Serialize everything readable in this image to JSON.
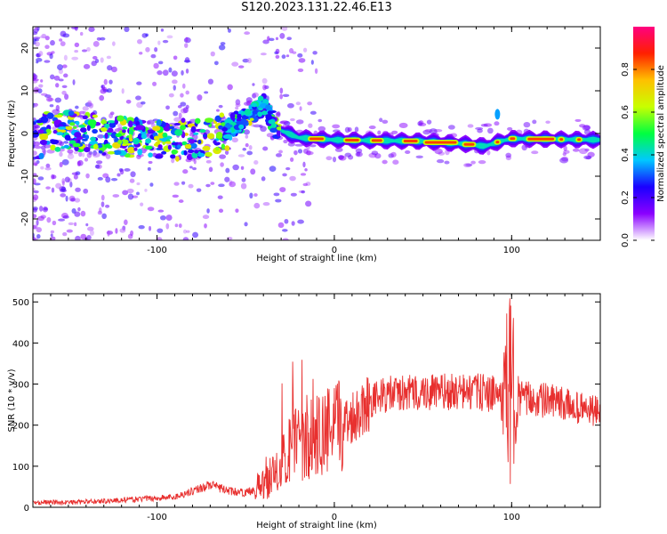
{
  "title": "S120.2023.131.22.46.E13",
  "chart_data": [
    {
      "type": "heatmap",
      "xlabel": "Height of straight line (km)",
      "ylabel": "Frequency (Hz)",
      "xlim": [
        -170,
        150
      ],
      "ylim": [
        -25,
        25
      ],
      "x_ticks": [
        -100,
        0,
        100
      ],
      "y_ticks": [
        -20,
        -10,
        0,
        10,
        20
      ],
      "colorbar": {
        "label": "Normalized spectral amplitude",
        "range": [
          0.0,
          1.0
        ],
        "ticks": [
          0.0,
          0.2,
          0.4,
          0.6,
          0.8
        ],
        "colormap": [
          "#ffffff",
          "#8a00ff",
          "#1a00ff",
          "#00c8ff",
          "#00ff40",
          "#c8ff00",
          "#ffc000",
          "#ff2000",
          "#ff0080"
        ]
      },
      "ridge": [
        {
          "x": -165,
          "f": 1.0
        },
        {
          "x": -140,
          "f": 0.0
        },
        {
          "x": -110,
          "f": -1.0
        },
        {
          "x": -90,
          "f": -1.5
        },
        {
          "x": -70,
          "f": -1.0
        },
        {
          "x": -60,
          "f": 1.0
        },
        {
          "x": -50,
          "f": 3.5
        },
        {
          "x": -40,
          "f": 7.0
        },
        {
          "x": -32,
          "f": 1.0
        },
        {
          "x": -20,
          "f": -1.0
        },
        {
          "x": 0,
          "f": -1.5
        },
        {
          "x": 50,
          "f": -1.8
        },
        {
          "x": 75,
          "f": -2.5
        },
        {
          "x": 85,
          "f": -3.0
        },
        {
          "x": 92,
          "f": -2.0
        },
        {
          "x": 100,
          "f": -1.2
        },
        {
          "x": 150,
          "f": -1.5
        }
      ]
    },
    {
      "type": "line",
      "xlabel": "Height of straight line (km)",
      "ylabel": "SNR (10 * v/v)",
      "xlim": [
        -170,
        150
      ],
      "ylim": [
        0,
        520
      ],
      "x_ticks": [
        -100,
        0,
        100
      ],
      "y_ticks": [
        0,
        100,
        200,
        300,
        400,
        500
      ],
      "series": [
        {
          "color": "#e8302f",
          "x": [
            -170,
            -150,
            -130,
            -110,
            -90,
            -80,
            -70,
            -60,
            -50,
            -40,
            -30,
            -20,
            -10,
            0,
            10,
            20,
            30,
            50,
            70,
            85,
            95,
            100,
            105,
            120,
            150
          ],
          "values": [
            12,
            12,
            15,
            20,
            25,
            40,
            55,
            40,
            35,
            55,
            110,
            160,
            170,
            190,
            220,
            260,
            275,
            280,
            280,
            280,
            270,
            280,
            265,
            260,
            230
          ]
        }
      ]
    }
  ]
}
